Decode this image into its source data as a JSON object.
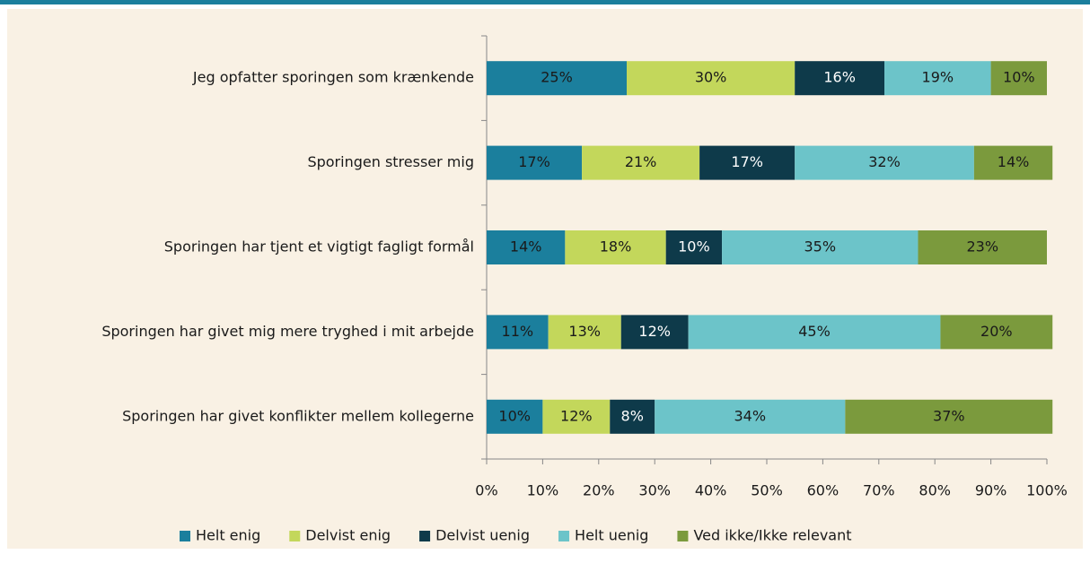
{
  "chart_data": {
    "type": "stacked_barh",
    "categories": [
      "Jeg opfatter sporingen som krænkende",
      "Sporingen stresser mig",
      "Sporingen har tjent et vigtigt fagligt formål",
      "Sporingen har givet mig mere tryghed i mit arbejde",
      "Sporingen har givet konflikter mellem kollegerne"
    ],
    "series": [
      {
        "name": "Helt enig",
        "color": "#1b7f9d",
        "values": [
          25,
          17,
          14,
          11,
          10
        ],
        "value_labels": [
          "25%",
          "17%",
          "14%",
          "11%",
          "10%"
        ]
      },
      {
        "name": "Delvist enig",
        "color": "#c3d75b",
        "values": [
          30,
          21,
          18,
          13,
          12
        ],
        "value_labels": [
          "30%",
          "21%",
          "18%",
          "13%",
          "12%"
        ]
      },
      {
        "name": "Delvist uenig",
        "color": "#0e3a4a",
        "values": [
          16,
          17,
          10,
          12,
          8
        ],
        "value_labels": [
          "16%",
          "17%",
          "10%",
          "12%",
          "8%"
        ]
      },
      {
        "name": "Helt uenig",
        "color": "#6cc4c9",
        "values": [
          19,
          32,
          35,
          45,
          34
        ],
        "value_labels": [
          "19%",
          "32%",
          "35%",
          "45%",
          "34%"
        ]
      },
      {
        "name": "Ved ikke/Ikke relevant",
        "color": "#7b9a3d",
        "values": [
          10,
          14,
          23,
          20,
          37
        ],
        "value_labels": [
          "10%",
          "14%",
          "23%",
          "20%",
          "37%"
        ]
      }
    ],
    "xlim": [
      0,
      100
    ],
    "xticks": [
      {
        "value": 0,
        "label": "0%"
      },
      {
        "value": 10,
        "label": "10%"
      },
      {
        "value": 20,
        "label": "20%"
      },
      {
        "value": 30,
        "label": "30%"
      },
      {
        "value": 40,
        "label": "40%"
      },
      {
        "value": 50,
        "label": "50%"
      },
      {
        "value": 60,
        "label": "60%"
      },
      {
        "value": 70,
        "label": "70%"
      },
      {
        "value": 80,
        "label": "80%"
      },
      {
        "value": 90,
        "label": "90%"
      },
      {
        "value": 100,
        "label": "100%"
      }
    ],
    "legend": "bottom"
  }
}
